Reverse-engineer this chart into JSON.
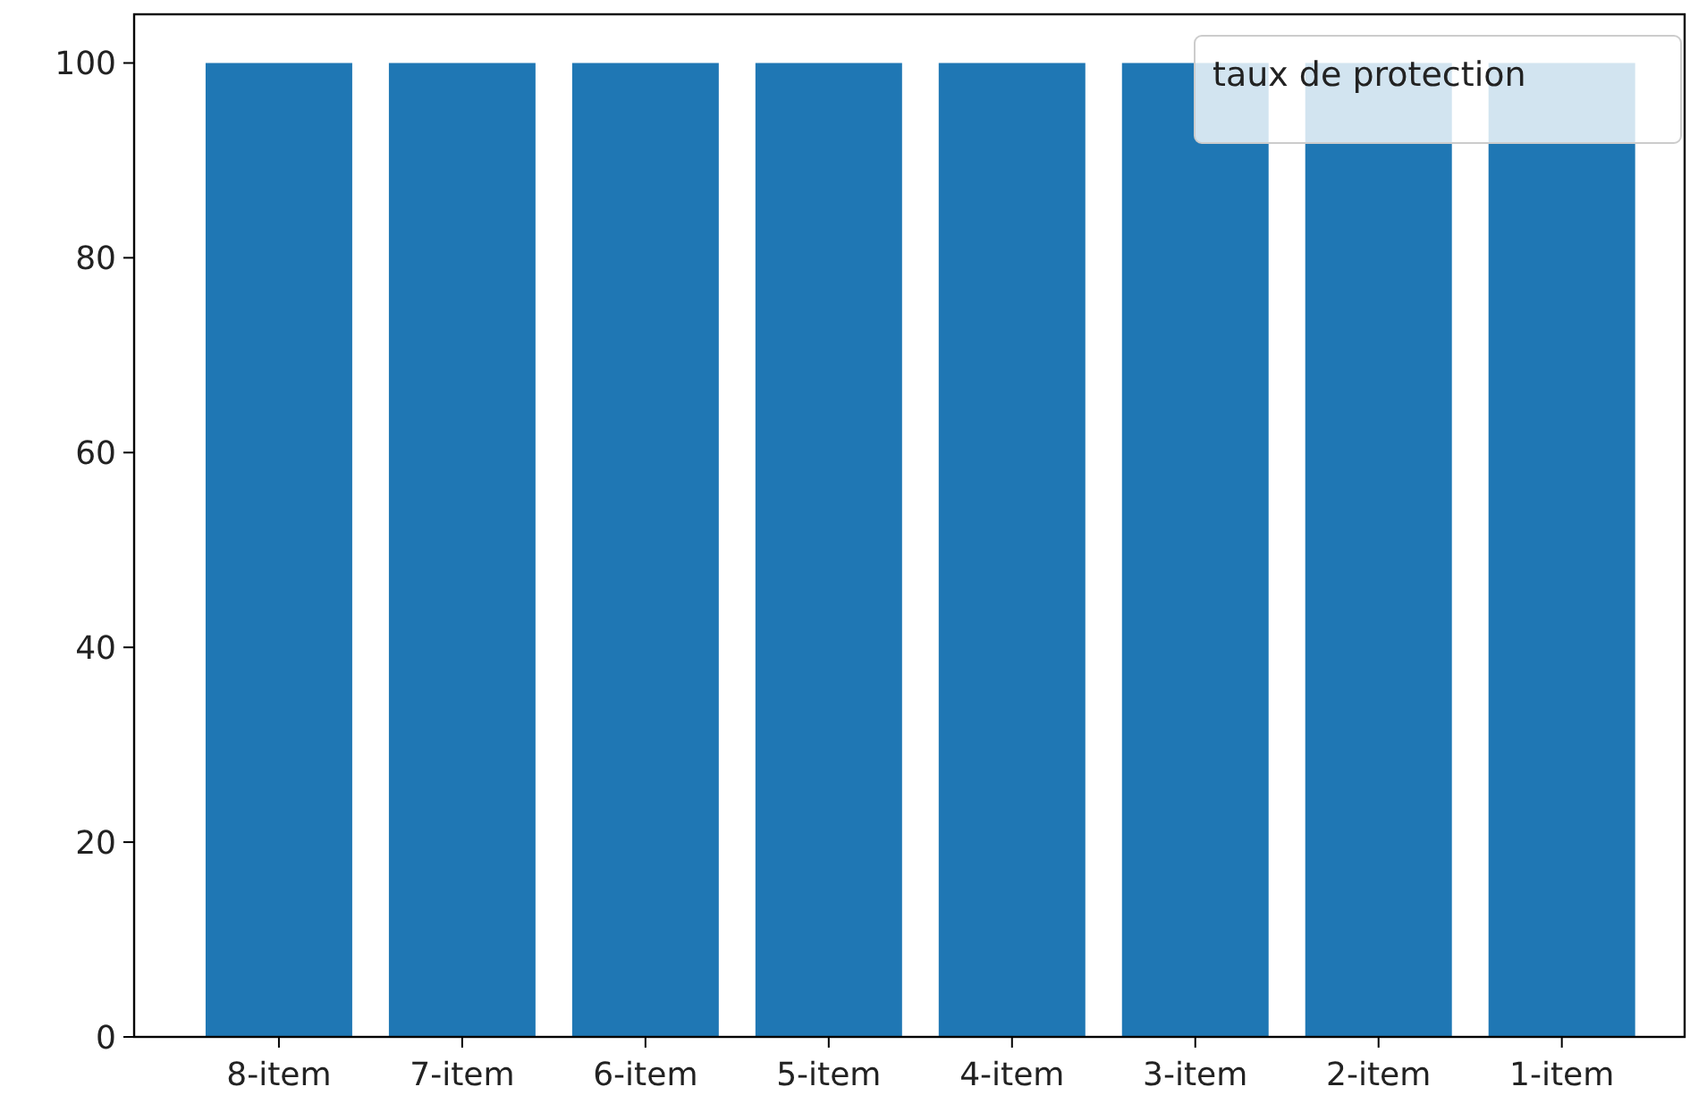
{
  "chart_data": {
    "type": "bar",
    "categories": [
      "8-item",
      "7-item",
      "6-item",
      "5-item",
      "4-item",
      "3-item",
      "2-item",
      "1-item"
    ],
    "values": [
      100,
      100,
      100,
      100,
      100,
      100,
      100,
      100
    ],
    "color": "#1f77b4",
    "ylim": [
      0,
      105
    ],
    "yticks": [
      0,
      20,
      40,
      60,
      80,
      100
    ],
    "legend_title": "taux de protection"
  }
}
